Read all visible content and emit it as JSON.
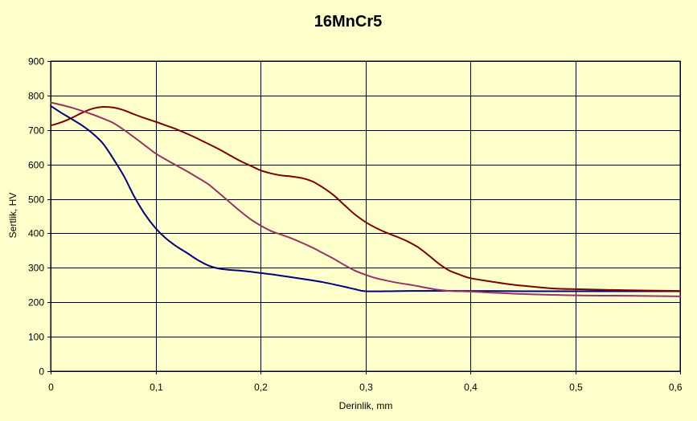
{
  "colors": {
    "background": "#FFFFCC",
    "plot_area": "#FFFFCC",
    "grid": "#000000",
    "axis": "#000000"
  },
  "chart_data": {
    "type": "line",
    "title": "16MnCr5",
    "xlabel": "Derinlik, mm",
    "ylabel": "Sertlik, HV",
    "xlim": [
      0,
      0.6
    ],
    "ylim": [
      0,
      900
    ],
    "x_ticks": [
      0,
      0.1,
      0.2,
      0.3,
      0.4,
      0.5,
      0.6
    ],
    "x_tick_labels": [
      "0",
      "0,1",
      "0,2",
      "0,3",
      "0,4",
      "0,5",
      "0,6"
    ],
    "y_ticks": [
      0,
      100,
      200,
      300,
      400,
      500,
      600,
      700,
      800,
      900
    ],
    "y_tick_labels": [
      "0",
      "100",
      "200",
      "300",
      "400",
      "500",
      "600",
      "700",
      "800",
      "900"
    ],
    "grid": true,
    "legend": "none",
    "series": [
      {
        "color": "#000080",
        "points": [
          [
            0,
            770
          ],
          [
            0.01,
            750
          ],
          [
            0.02,
            732
          ],
          [
            0.03,
            713
          ],
          [
            0.04,
            690
          ],
          [
            0.05,
            660
          ],
          [
            0.06,
            615
          ],
          [
            0.07,
            565
          ],
          [
            0.08,
            505
          ],
          [
            0.09,
            455
          ],
          [
            0.1,
            415
          ],
          [
            0.11,
            385
          ],
          [
            0.12,
            362
          ],
          [
            0.13,
            343
          ],
          [
            0.14,
            323
          ],
          [
            0.15,
            307
          ],
          [
            0.16,
            298
          ],
          [
            0.17,
            294
          ],
          [
            0.18,
            292
          ],
          [
            0.2,
            285
          ],
          [
            0.22,
            277
          ],
          [
            0.24,
            268
          ],
          [
            0.26,
            258
          ],
          [
            0.28,
            245
          ],
          [
            0.29,
            238
          ],
          [
            0.3,
            232
          ],
          [
            0.32,
            232
          ],
          [
            0.35,
            233
          ],
          [
            0.4,
            233
          ],
          [
            0.45,
            232
          ],
          [
            0.5,
            232
          ],
          [
            0.55,
            232
          ],
          [
            0.6,
            232
          ]
        ]
      },
      {
        "color": "#800000",
        "points": [
          [
            0,
            713
          ],
          [
            0.01,
            722
          ],
          [
            0.02,
            735
          ],
          [
            0.03,
            750
          ],
          [
            0.04,
            762
          ],
          [
            0.05,
            767
          ],
          [
            0.06,
            765
          ],
          [
            0.07,
            757
          ],
          [
            0.08,
            745
          ],
          [
            0.09,
            734
          ],
          [
            0.1,
            724
          ],
          [
            0.11,
            713
          ],
          [
            0.12,
            702
          ],
          [
            0.13,
            689
          ],
          [
            0.14,
            675
          ],
          [
            0.15,
            660
          ],
          [
            0.16,
            645
          ],
          [
            0.17,
            628
          ],
          [
            0.18,
            611
          ],
          [
            0.19,
            597
          ],
          [
            0.2,
            583
          ],
          [
            0.21,
            574
          ],
          [
            0.22,
            568
          ],
          [
            0.23,
            565
          ],
          [
            0.24,
            560
          ],
          [
            0.25,
            550
          ],
          [
            0.26,
            532
          ],
          [
            0.27,
            510
          ],
          [
            0.28,
            482
          ],
          [
            0.29,
            455
          ],
          [
            0.3,
            433
          ],
          [
            0.31,
            416
          ],
          [
            0.32,
            402
          ],
          [
            0.33,
            390
          ],
          [
            0.34,
            377
          ],
          [
            0.35,
            360
          ],
          [
            0.36,
            337
          ],
          [
            0.37,
            312
          ],
          [
            0.38,
            292
          ],
          [
            0.39,
            280
          ],
          [
            0.4,
            270
          ],
          [
            0.42,
            260
          ],
          [
            0.44,
            251
          ],
          [
            0.46,
            245
          ],
          [
            0.48,
            240
          ],
          [
            0.5,
            238
          ],
          [
            0.55,
            235
          ],
          [
            0.6,
            233
          ]
        ]
      },
      {
        "color": "#993366",
        "points": [
          [
            0,
            780
          ],
          [
            0.02,
            765
          ],
          [
            0.04,
            745
          ],
          [
            0.05,
            733
          ],
          [
            0.06,
            720
          ],
          [
            0.07,
            700
          ],
          [
            0.08,
            678
          ],
          [
            0.09,
            655
          ],
          [
            0.1,
            632
          ],
          [
            0.11,
            614
          ],
          [
            0.12,
            597
          ],
          [
            0.13,
            580
          ],
          [
            0.14,
            562
          ],
          [
            0.15,
            543
          ],
          [
            0.16,
            518
          ],
          [
            0.17,
            492
          ],
          [
            0.18,
            466
          ],
          [
            0.19,
            442
          ],
          [
            0.2,
            423
          ],
          [
            0.21,
            407
          ],
          [
            0.22,
            396
          ],
          [
            0.23,
            385
          ],
          [
            0.24,
            372
          ],
          [
            0.25,
            358
          ],
          [
            0.26,
            342
          ],
          [
            0.27,
            326
          ],
          [
            0.28,
            308
          ],
          [
            0.29,
            292
          ],
          [
            0.3,
            280
          ],
          [
            0.31,
            270
          ],
          [
            0.32,
            263
          ],
          [
            0.33,
            257
          ],
          [
            0.34,
            252
          ],
          [
            0.35,
            247
          ],
          [
            0.36,
            241
          ],
          [
            0.37,
            236
          ],
          [
            0.38,
            233
          ],
          [
            0.4,
            231
          ],
          [
            0.42,
            228
          ],
          [
            0.45,
            224
          ],
          [
            0.5,
            220
          ],
          [
            0.55,
            219
          ],
          [
            0.6,
            217
          ]
        ]
      }
    ]
  }
}
